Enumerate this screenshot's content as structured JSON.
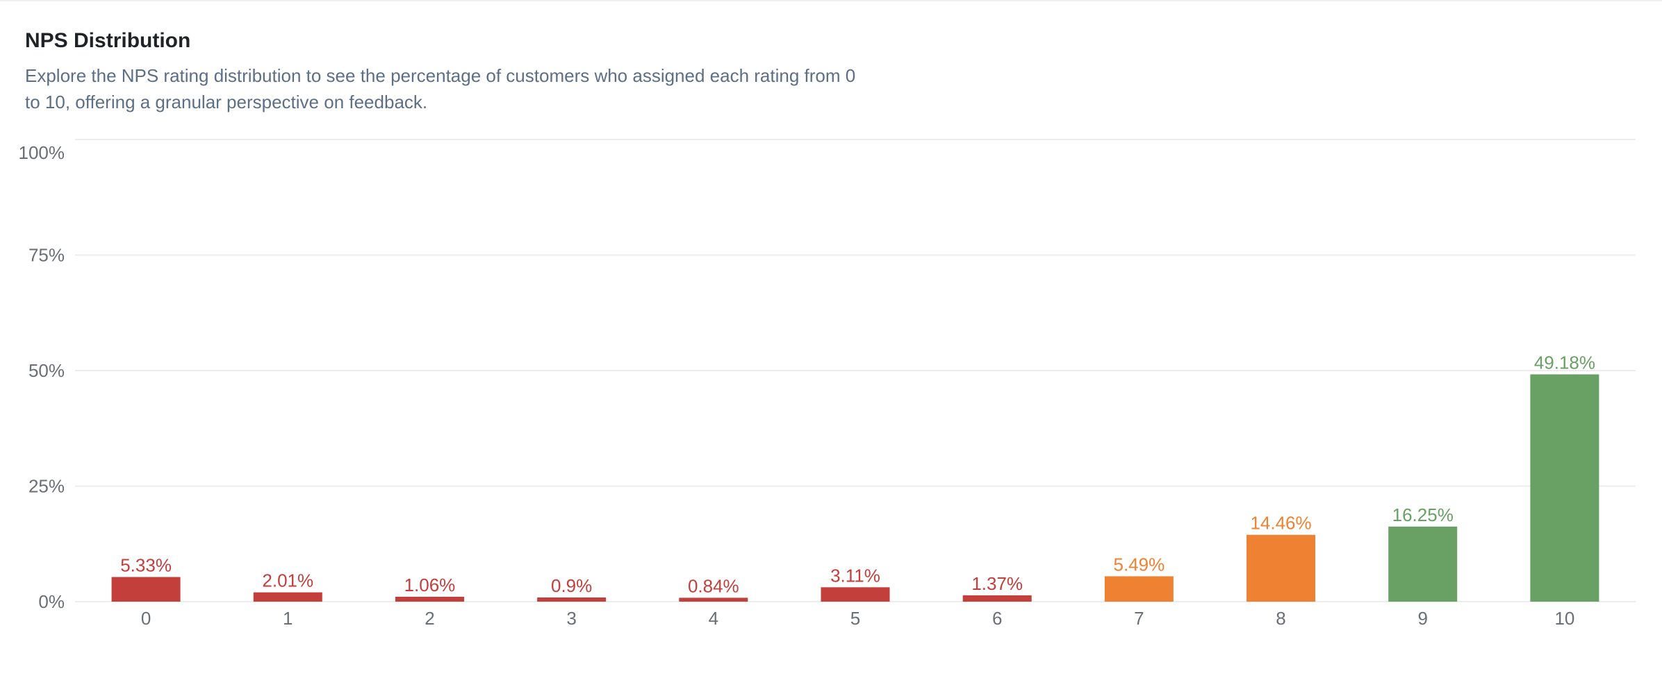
{
  "header": {
    "title": "NPS Distribution",
    "subtitle": "Explore the NPS rating distribution to see the percentage of customers who assigned each rating from 0 to 10, offering a granular perspective on feedback."
  },
  "colors": {
    "detractor": "#c23f3b",
    "passive": "#ef8232",
    "promoter": "#68a163",
    "grid": "#ececec",
    "tick": "#6a6f76"
  },
  "chart_data": {
    "type": "bar",
    "categories": [
      "0",
      "1",
      "2",
      "3",
      "4",
      "5",
      "6",
      "7",
      "8",
      "9",
      "10"
    ],
    "values": [
      5.33,
      2.01,
      1.06,
      0.9,
      0.84,
      3.11,
      1.37,
      5.49,
      14.46,
      16.25,
      49.18
    ],
    "data_labels": [
      "5.33%",
      "2.01%",
      "1.06%",
      "0.9%",
      "0.84%",
      "3.11%",
      "1.37%",
      "5.49%",
      "14.46%",
      "16.25%",
      "49.18%"
    ],
    "groups": [
      "detractor",
      "detractor",
      "detractor",
      "detractor",
      "detractor",
      "detractor",
      "detractor",
      "passive",
      "passive",
      "promoter",
      "promoter"
    ],
    "yticks": [
      0,
      25,
      50,
      75,
      100
    ],
    "ytick_labels": [
      "0%",
      "25%",
      "50%",
      "75%",
      "100%"
    ],
    "ylim": [
      0,
      100
    ],
    "grid": true,
    "legend": "none",
    "title": "",
    "xlabel": "",
    "ylabel": ""
  }
}
